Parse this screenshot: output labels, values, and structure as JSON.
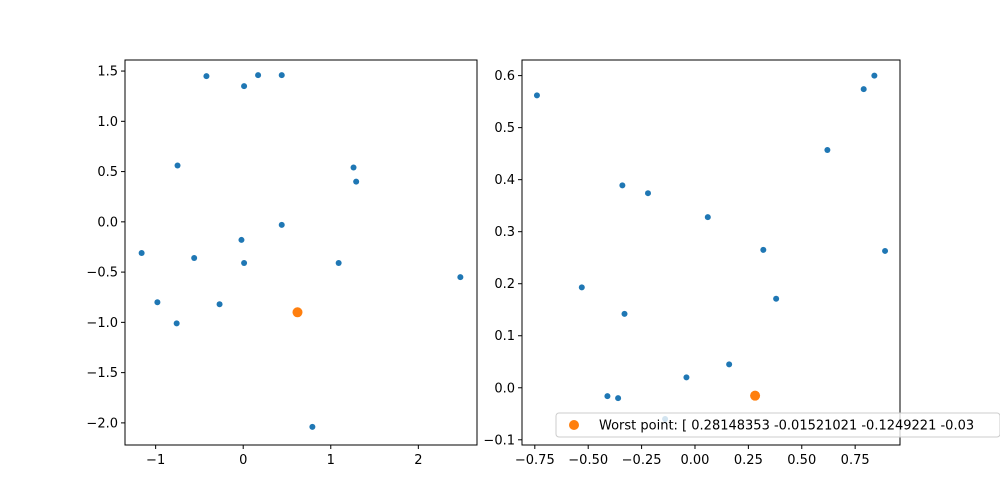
{
  "chart_data": [
    {
      "type": "scatter",
      "xlim": [
        -1.35,
        2.67
      ],
      "ylim": [
        -2.22,
        1.61
      ],
      "xticks": [
        -1,
        0,
        1,
        2
      ],
      "xtick_labels": [
        "−1",
        "0",
        "1",
        "2"
      ],
      "yticks": [
        -2.0,
        -1.5,
        -1.0,
        -0.5,
        0.0,
        0.5,
        1.0,
        1.5
      ],
      "ytick_labels": [
        "−2.0",
        "−1.5",
        "−1.0",
        "−0.5",
        "0.0",
        "0.5",
        "1.0",
        "1.5"
      ],
      "grid": false,
      "series": [
        {
          "color": "#1f77b4",
          "marker_size": 3,
          "points": [
            [
              -0.42,
              1.45
            ],
            [
              0.17,
              1.46
            ],
            [
              0.44,
              1.46
            ],
            [
              0.01,
              1.35
            ],
            [
              -0.75,
              0.56
            ],
            [
              1.26,
              0.54
            ],
            [
              1.29,
              0.4
            ],
            [
              0.44,
              -0.03
            ],
            [
              -1.16,
              -0.31
            ],
            [
              -0.02,
              -0.18
            ],
            [
              -0.56,
              -0.36
            ],
            [
              0.01,
              -0.41
            ],
            [
              1.09,
              -0.41
            ],
            [
              2.48,
              -0.55
            ],
            [
              -0.98,
              -0.8
            ],
            [
              -0.27,
              -0.82
            ],
            [
              -0.76,
              -1.01
            ],
            [
              0.79,
              -2.04
            ]
          ]
        },
        {
          "color": "#ff7f0e",
          "marker_size": 5,
          "points": [
            [
              0.62,
              -0.9
            ]
          ]
        }
      ]
    },
    {
      "type": "scatter",
      "xlim": [
        -0.81,
        0.96
      ],
      "ylim": [
        -0.11,
        0.63
      ],
      "xticks": [
        -0.75,
        -0.5,
        -0.25,
        0.0,
        0.25,
        0.5,
        0.75
      ],
      "xtick_labels": [
        "−0.75",
        "−0.50",
        "−0.25",
        "0.00",
        "0.25",
        "0.50",
        "0.75"
      ],
      "yticks": [
        -0.1,
        0.0,
        0.1,
        0.2,
        0.3,
        0.4,
        0.5,
        0.6
      ],
      "ytick_labels": [
        "−0.1",
        "0.0",
        "0.1",
        "0.2",
        "0.3",
        "0.4",
        "0.5",
        "0.6"
      ],
      "grid": false,
      "legend": {
        "placement": "lower-right",
        "entries": [
          {
            "label": "Worst point: [ 0.28148353 -0.01521021 -0.1249221  -0.03",
            "color": "#ff7f0e"
          }
        ]
      },
      "series": [
        {
          "color": "#1f77b4",
          "marker_size": 3,
          "points": [
            [
              0.84,
              0.6
            ],
            [
              0.79,
              0.574
            ],
            [
              -0.74,
              0.562
            ],
            [
              0.62,
              0.457
            ],
            [
              -0.34,
              0.389
            ],
            [
              -0.22,
              0.374
            ],
            [
              0.06,
              0.328
            ],
            [
              0.32,
              0.265
            ],
            [
              0.89,
              0.263
            ],
            [
              -0.53,
              0.193
            ],
            [
              0.38,
              0.171
            ],
            [
              -0.33,
              0.142
            ],
            [
              0.16,
              0.045
            ],
            [
              -0.04,
              0.02
            ],
            [
              -0.41,
              -0.016
            ],
            [
              -0.36,
              -0.02
            ],
            [
              -0.14,
              -0.06
            ]
          ]
        },
        {
          "color": "#ff7f0e",
          "marker_size": 5,
          "points": [
            [
              0.28148353,
              -0.01521021
            ]
          ]
        }
      ]
    }
  ]
}
